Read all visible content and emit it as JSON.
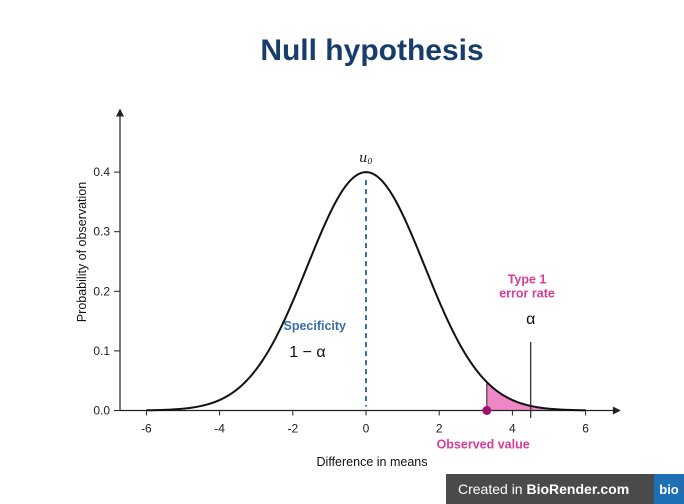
{
  "chart_data": {
    "type": "line",
    "title": "Null hypothesis",
    "xlabel": "Difference in means",
    "ylabel": "Probability of observation",
    "xlim": [
      -6.3,
      6.8
    ],
    "ylim": [
      0,
      0.5
    ],
    "x_ticks": [
      "-6",
      "-4",
      "-2",
      "0",
      "2",
      "4",
      "6"
    ],
    "y_ticks": [
      "0.0",
      "0.1",
      "0.2",
      "0.3",
      "0.4"
    ],
    "x_tick_values": [
      -6,
      -4,
      -2,
      0,
      2,
      4,
      6
    ],
    "y_tick_values": [
      0.0,
      0.1,
      0.2,
      0.3,
      0.4
    ],
    "curve": {
      "distribution": "normal",
      "mean": 0,
      "sd": 1.6,
      "peak": 0.4,
      "x_range": [
        -6,
        6
      ]
    },
    "mean_label": "u",
    "mean_label_sub": "0",
    "observed_value": 3.3,
    "shaded_region": {
      "from": 3.3,
      "to": 6,
      "color": "#ef86c5"
    },
    "annotations": {
      "specificity_label": "Specificity",
      "specificity_formula": "1 − α",
      "type1_label_line1": "Type 1",
      "type1_label_line2": "error rate",
      "type1_symbol": "α",
      "observed_label": "Observed value"
    },
    "colors": {
      "title": "#173d6b",
      "curve": "#111111",
      "mean_line": "#3a6ea8",
      "specificity": "#3a6ea8",
      "type1": "#d63d98",
      "observed_marker": "#a0106a",
      "shade": "#ef86c5"
    },
    "grid": false
  },
  "badge": {
    "prefix": "Created in ",
    "brand": "BioRender.com",
    "logo": "bio"
  }
}
